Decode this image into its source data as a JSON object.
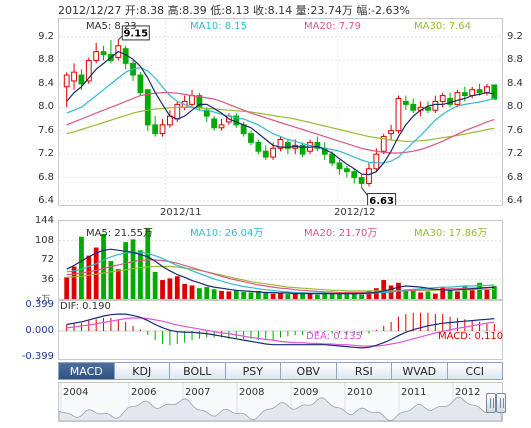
{
  "header": {
    "text": "2012/12/27 开:8.38 高:8.39 低:8.13 收:8.14 量:23.74万 幅:-2.63%"
  },
  "colors": {
    "up": "#dd0000",
    "down": "#00aa00",
    "ma5": "#1a2a6e",
    "ma10": "#33bbcc",
    "ma20": "#dd5588",
    "ma30": "#99bb33",
    "dif": "#1a2a6e",
    "dea": "#dd55dd"
  },
  "price_legend": {
    "ma5": "MA5: 8.23",
    "ma10": "MA10: 8.15",
    "ma20": "MA20: 7.79",
    "ma30": "MA30: 7.64"
  },
  "volume_legend": {
    "ma5": "MA5: 21.55万",
    "ma10": "MA10: 26.04万",
    "ma20": "MA20: 21.70万",
    "ma30": "MA30: 17.86万"
  },
  "volume_unit": "x万",
  "macd_legend": {
    "dif": "DIF: 0.190",
    "dea": "DEA: 0.135",
    "macd": "MACD: 0.110"
  },
  "tabs": [
    "MACD",
    "KDJ",
    "BOLL",
    "PSY",
    "OBV",
    "RSI",
    "WVAD",
    "CCI"
  ],
  "timeline_years": [
    "2004",
    "2006",
    "2007",
    "2008",
    "2009",
    "2010",
    "2011",
    "2012"
  ],
  "chart_data": {
    "type": "candlestick",
    "price_axis": {
      "ticks": [
        "9.2",
        "8.8",
        "8.4",
        "8.0",
        "7.6",
        "7.2",
        "6.8",
        "6.4"
      ],
      "range": [
        6.4,
        9.2
      ]
    },
    "date_labels": [
      "2012/11",
      "2012/12"
    ],
    "annotations": {
      "high": "9.15",
      "low": "6.63"
    },
    "candles": [
      [
        8.35,
        8.55,
        8.6,
        8.0
      ],
      [
        8.45,
        8.6,
        8.75,
        8.3
      ],
      [
        8.55,
        8.4,
        8.65,
        8.3
      ],
      [
        8.45,
        8.8,
        8.85,
        8.4
      ],
      [
        8.8,
        8.95,
        9.1,
        8.75
      ],
      [
        8.95,
        8.9,
        9.05,
        8.8
      ],
      [
        8.9,
        8.8,
        9.15,
        8.75
      ],
      [
        8.85,
        9.05,
        9.15,
        8.8
      ],
      [
        9.0,
        8.75,
        9.05,
        8.65
      ],
      [
        8.75,
        8.55,
        8.8,
        8.45
      ],
      [
        8.55,
        8.25,
        8.6,
        8.2
      ],
      [
        8.3,
        7.7,
        8.3,
        7.6
      ],
      [
        7.7,
        7.55,
        7.85,
        7.5
      ],
      [
        7.55,
        7.7,
        7.8,
        7.5
      ],
      [
        7.7,
        7.85,
        7.95,
        7.65
      ],
      [
        7.8,
        8.05,
        8.1,
        7.75
      ],
      [
        8.0,
        8.1,
        8.2,
        7.95
      ],
      [
        8.05,
        8.2,
        8.3,
        8.0
      ],
      [
        8.2,
        8.0,
        8.25,
        7.95
      ],
      [
        7.95,
        7.85,
        8.0,
        7.75
      ],
      [
        7.8,
        7.65,
        7.85,
        7.6
      ],
      [
        7.65,
        7.7,
        7.8,
        7.6
      ],
      [
        7.75,
        7.85,
        7.9,
        7.7
      ],
      [
        7.85,
        7.7,
        7.9,
        7.65
      ],
      [
        7.7,
        7.55,
        7.75,
        7.5
      ],
      [
        7.55,
        7.4,
        7.6,
        7.35
      ],
      [
        7.4,
        7.25,
        7.45,
        7.2
      ],
      [
        7.25,
        7.15,
        7.35,
        7.1
      ],
      [
        7.15,
        7.3,
        7.4,
        7.1
      ],
      [
        7.3,
        7.45,
        7.5,
        7.25
      ],
      [
        7.4,
        7.3,
        7.45,
        7.2
      ],
      [
        7.3,
        7.35,
        7.45,
        7.2
      ],
      [
        7.35,
        7.2,
        7.4,
        7.15
      ],
      [
        7.25,
        7.4,
        7.45,
        7.2
      ],
      [
        7.4,
        7.3,
        7.5,
        7.25
      ],
      [
        7.3,
        7.2,
        7.4,
        7.1
      ],
      [
        7.2,
        7.05,
        7.25,
        7.0
      ],
      [
        7.05,
        6.95,
        7.1,
        6.85
      ],
      [
        6.95,
        6.9,
        7.0,
        6.8
      ],
      [
        6.9,
        6.8,
        6.95,
        6.7
      ],
      [
        6.8,
        6.7,
        6.85,
        6.63
      ],
      [
        6.7,
        6.95,
        7.05,
        6.65
      ],
      [
        6.95,
        7.2,
        7.3,
        6.9
      ],
      [
        7.25,
        7.5,
        7.55,
        7.2
      ],
      [
        7.55,
        7.6,
        7.7,
        7.45
      ],
      [
        7.6,
        8.15,
        8.2,
        7.55
      ],
      [
        8.1,
        8.05,
        8.2,
        7.95
      ],
      [
        8.05,
        7.95,
        8.15,
        7.9
      ],
      [
        7.95,
        8.0,
        8.1,
        7.85
      ],
      [
        8.0,
        7.95,
        8.1,
        7.9
      ],
      [
        7.95,
        8.1,
        8.2,
        7.9
      ],
      [
        8.1,
        8.2,
        8.25,
        8.0
      ],
      [
        8.15,
        8.05,
        8.25,
        8.0
      ],
      [
        8.05,
        8.25,
        8.3,
        8.0
      ],
      [
        8.25,
        8.2,
        8.35,
        8.1
      ],
      [
        8.2,
        8.3,
        8.35,
        8.15
      ],
      [
        8.3,
        8.25,
        8.4,
        8.2
      ],
      [
        8.25,
        8.35,
        8.4,
        8.2
      ],
      [
        8.38,
        8.14,
        8.39,
        8.13
      ]
    ],
    "ma": {
      "ma5": [
        8.1,
        8.25,
        8.35,
        8.5,
        8.65,
        8.75,
        8.85,
        8.95,
        8.9,
        8.82,
        8.7,
        8.5,
        8.25,
        8.05,
        7.85,
        7.8,
        7.85,
        7.95,
        8.05,
        8.05,
        7.98,
        7.9,
        7.8,
        7.75,
        7.7,
        7.65,
        7.55,
        7.45,
        7.35,
        7.32,
        7.32,
        7.33,
        7.32,
        7.32,
        7.33,
        7.28,
        7.22,
        7.12,
        7.03,
        6.95,
        6.86,
        6.85,
        6.9,
        7.05,
        7.25,
        7.5,
        7.7,
        7.85,
        7.95,
        8.02,
        8.05,
        8.05,
        8.08,
        8.12,
        8.15,
        8.2,
        8.22,
        8.25,
        8.23
      ],
      "ma10": [
        7.9,
        7.95,
        8.0,
        8.1,
        8.2,
        8.3,
        8.4,
        8.5,
        8.6,
        8.65,
        8.68,
        8.62,
        8.5,
        8.35,
        8.2,
        8.1,
        8.05,
        8.0,
        7.95,
        7.95,
        7.92,
        7.88,
        7.85,
        7.82,
        7.8,
        7.75,
        7.7,
        7.62,
        7.55,
        7.5,
        7.45,
        7.42,
        7.38,
        7.35,
        7.33,
        7.3,
        7.28,
        7.25,
        7.2,
        7.15,
        7.1,
        7.06,
        7.05,
        7.05,
        7.08,
        7.15,
        7.28,
        7.4,
        7.52,
        7.65,
        7.78,
        7.88,
        7.96,
        8.02,
        8.05,
        8.07,
        8.09,
        8.12,
        8.15
      ],
      "ma20": [
        7.7,
        7.75,
        7.8,
        7.85,
        7.9,
        7.95,
        8.0,
        8.05,
        8.1,
        8.15,
        8.2,
        8.22,
        8.24,
        8.25,
        8.25,
        8.24,
        8.22,
        8.2,
        8.18,
        8.16,
        8.14,
        8.1,
        8.05,
        8.0,
        7.95,
        7.9,
        7.86,
        7.82,
        7.78,
        7.74,
        7.7,
        7.66,
        7.62,
        7.58,
        7.54,
        7.5,
        7.46,
        7.42,
        7.38,
        7.34,
        7.3,
        7.27,
        7.25,
        7.23,
        7.22,
        7.22,
        7.23,
        7.25,
        7.28,
        7.32,
        7.37,
        7.42,
        7.48,
        7.54,
        7.6,
        7.65,
        7.7,
        7.75,
        7.79
      ],
      "ma30": [
        7.55,
        7.58,
        7.62,
        7.66,
        7.7,
        7.74,
        7.78,
        7.82,
        7.86,
        7.9,
        7.93,
        7.95,
        7.97,
        7.98,
        7.99,
        8.0,
        8.0,
        8.0,
        7.99,
        7.98,
        7.97,
        7.96,
        7.95,
        7.94,
        7.93,
        7.92,
        7.9,
        7.88,
        7.86,
        7.84,
        7.82,
        7.8,
        7.77,
        7.74,
        7.71,
        7.68,
        7.65,
        7.62,
        7.59,
        7.56,
        7.53,
        7.5,
        7.48,
        7.46,
        7.44,
        7.43,
        7.42,
        7.42,
        7.43,
        7.44,
        7.46,
        7.48,
        7.5,
        7.52,
        7.54,
        7.57,
        7.59,
        7.62,
        7.64
      ]
    },
    "volume_axis": {
      "ticks": [
        "144",
        "108",
        "72",
        "36"
      ],
      "range": [
        0,
        144
      ]
    },
    "volumes": [
      40,
      60,
      115,
      80,
      95,
      120,
      70,
      55,
      105,
      110,
      90,
      130,
      50,
      35,
      38,
      42,
      28,
      25,
      20,
      22,
      18,
      15,
      14,
      16,
      13,
      12,
      15,
      11,
      10,
      12,
      9,
      11,
      10,
      12,
      8,
      9,
      10,
      11,
      9,
      10,
      8,
      14,
      20,
      35,
      25,
      30,
      15,
      18,
      12,
      14,
      10,
      22,
      18,
      14,
      25,
      20,
      30,
      18,
      24
    ],
    "volume_ma": {
      "ma5": [
        55,
        62,
        70,
        78,
        85,
        90,
        92,
        90,
        88,
        86,
        82,
        78,
        70,
        60,
        52,
        45,
        40,
        34,
        30,
        25,
        22,
        20,
        18,
        16,
        15,
        14,
        13,
        12,
        12,
        11,
        11,
        10,
        10,
        10,
        10,
        10,
        10,
        10,
        10,
        10,
        10,
        11,
        12,
        15,
        18,
        22,
        24,
        23,
        22,
        20,
        18,
        17,
        16,
        17,
        18,
        19,
        20,
        21,
        21.55
      ],
      "ma10": [
        50,
        52,
        55,
        60,
        65,
        72,
        78,
        82,
        85,
        86,
        86,
        84,
        80,
        75,
        68,
        62,
        58,
        52,
        47,
        42,
        37,
        33,
        29,
        26,
        23,
        21,
        19,
        17,
        16,
        14,
        13,
        12,
        12,
        11,
        11,
        11,
        10,
        10,
        10,
        10,
        10,
        10,
        11,
        12,
        13,
        15,
        17,
        18,
        19,
        20,
        21,
        22,
        22,
        23,
        24,
        24,
        25,
        25,
        26.04
      ],
      "ma20": [
        45,
        46,
        48,
        50,
        53,
        56,
        60,
        63,
        66,
        69,
        71,
        72,
        72,
        71,
        69,
        66,
        62,
        58,
        54,
        50,
        46,
        42,
        38,
        35,
        32,
        29,
        26,
        24,
        22,
        20,
        19,
        17,
        16,
        15,
        14,
        13,
        13,
        12,
        12,
        12,
        12,
        12,
        12,
        13,
        14,
        15,
        15,
        16,
        17,
        17,
        18,
        18,
        19,
        19,
        20,
        20,
        21,
        21,
        21.7
      ],
      "ma30": [
        40,
        41,
        42,
        44,
        46,
        48,
        50,
        52,
        54,
        56,
        58,
        59,
        60,
        60,
        60,
        59,
        57,
        55,
        53,
        50,
        47,
        44,
        41,
        38,
        35,
        32,
        30,
        28,
        26,
        24,
        22,
        21,
        20,
        19,
        18,
        17,
        16,
        16,
        15,
        15,
        15,
        15,
        15,
        15,
        15,
        15,
        16,
        16,
        16,
        16,
        16,
        17,
        17,
        17,
        17,
        17,
        18,
        18,
        17.86
      ]
    },
    "macd_axis": {
      "ticks": [
        "0.399",
        "0.000",
        "-0.399"
      ],
      "range": [
        -0.399,
        0.399
      ]
    },
    "macd": {
      "dif": [
        0.1,
        0.12,
        0.14,
        0.17,
        0.2,
        0.23,
        0.25,
        0.26,
        0.26,
        0.24,
        0.21,
        0.16,
        0.1,
        0.05,
        0.01,
        -0.01,
        -0.02,
        -0.02,
        -0.03,
        -0.04,
        -0.06,
        -0.08,
        -0.1,
        -0.12,
        -0.14,
        -0.16,
        -0.18,
        -0.2,
        -0.21,
        -0.21,
        -0.21,
        -0.21,
        -0.21,
        -0.21,
        -0.21,
        -0.21,
        -0.22,
        -0.23,
        -0.24,
        -0.25,
        -0.26,
        -0.25,
        -0.22,
        -0.18,
        -0.13,
        -0.07,
        -0.02,
        0.02,
        0.05,
        0.08,
        0.1,
        0.12,
        0.13,
        0.14,
        0.15,
        0.16,
        0.17,
        0.18,
        0.19
      ],
      "dea": [
        0.05,
        0.06,
        0.08,
        0.09,
        0.11,
        0.13,
        0.15,
        0.17,
        0.19,
        0.2,
        0.2,
        0.19,
        0.17,
        0.15,
        0.12,
        0.09,
        0.07,
        0.05,
        0.03,
        0.01,
        -0.01,
        -0.03,
        -0.04,
        -0.06,
        -0.08,
        -0.1,
        -0.11,
        -0.13,
        -0.14,
        -0.16,
        -0.17,
        -0.18,
        -0.18,
        -0.19,
        -0.19,
        -0.2,
        -0.2,
        -0.21,
        -0.21,
        -0.22,
        -0.23,
        -0.23,
        -0.23,
        -0.22,
        -0.2,
        -0.18,
        -0.15,
        -0.12,
        -0.09,
        -0.06,
        -0.03,
        -0.01,
        0.02,
        0.04,
        0.06,
        0.08,
        0.1,
        0.12,
        0.135
      ],
      "hist": [
        0.1,
        0.12,
        0.12,
        0.16,
        0.18,
        0.2,
        0.2,
        0.18,
        0.14,
        0.08,
        0.02,
        -0.06,
        -0.14,
        -0.2,
        -0.22,
        -0.2,
        -0.18,
        -0.14,
        -0.12,
        -0.1,
        -0.1,
        -0.1,
        -0.12,
        -0.12,
        -0.12,
        -0.12,
        -0.14,
        -0.14,
        -0.14,
        -0.1,
        -0.08,
        -0.06,
        -0.06,
        -0.04,
        -0.04,
        -0.02,
        -0.04,
        -0.04,
        -0.06,
        -0.06,
        -0.06,
        -0.04,
        0.02,
        0.08,
        0.14,
        0.22,
        0.26,
        0.28,
        0.28,
        0.28,
        0.26,
        0.26,
        0.22,
        0.2,
        0.18,
        0.16,
        0.14,
        0.12,
        0.11
      ]
    }
  }
}
